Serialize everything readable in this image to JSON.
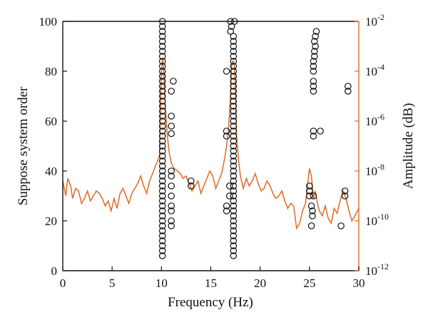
{
  "chart_data": {
    "type": "scatter",
    "xlabel": "Frequency (Hz)",
    "ylabel_left": "Suppose system order",
    "ylabel_right": "Amplitude (dB)",
    "xlim": [
      0,
      30
    ],
    "ylim_left": [
      0,
      100
    ],
    "ylim_right_log10": [
      -12,
      -2
    ],
    "right_scale": "log",
    "grid": false,
    "x_ticks": [
      "0",
      "5",
      "10",
      "15",
      "20",
      "25",
      "30"
    ],
    "y_left_ticks": [
      "0",
      "20",
      "40",
      "60",
      "80",
      "100"
    ],
    "y_right_ticks": [
      {
        "base": "10",
        "exp": "-12"
      },
      {
        "base": "10",
        "exp": "-10"
      },
      {
        "base": "10",
        "exp": "-8"
      },
      {
        "base": "10",
        "exp": "-6"
      },
      {
        "base": "10",
        "exp": "-4"
      },
      {
        "base": "10",
        "exp": "-2"
      }
    ],
    "colors": {
      "axes": "#111111",
      "spectrum": "#e06a22",
      "markers": "#111111"
    },
    "series": [
      {
        "type": "scatter",
        "marker": "open-circle",
        "axis": "left",
        "points": [
          {
            "x": 10.1,
            "y": 6
          },
          {
            "x": 10.1,
            "y": 8
          },
          {
            "x": 10.1,
            "y": 10
          },
          {
            "x": 10.1,
            "y": 12
          },
          {
            "x": 10.1,
            "y": 14
          },
          {
            "x": 10.1,
            "y": 16
          },
          {
            "x": 10.1,
            "y": 18
          },
          {
            "x": 10.1,
            "y": 20
          },
          {
            "x": 10.1,
            "y": 22
          },
          {
            "x": 10.1,
            "y": 24
          },
          {
            "x": 10.1,
            "y": 26
          },
          {
            "x": 10.1,
            "y": 28
          },
          {
            "x": 10.1,
            "y": 30
          },
          {
            "x": 10.1,
            "y": 32
          },
          {
            "x": 10.1,
            "y": 34
          },
          {
            "x": 10.1,
            "y": 36
          },
          {
            "x": 10.1,
            "y": 38
          },
          {
            "x": 10.1,
            "y": 40
          },
          {
            "x": 10.1,
            "y": 42
          },
          {
            "x": 10.1,
            "y": 44
          },
          {
            "x": 10.1,
            "y": 46
          },
          {
            "x": 10.1,
            "y": 48
          },
          {
            "x": 10.1,
            "y": 50
          },
          {
            "x": 10.1,
            "y": 52
          },
          {
            "x": 10.1,
            "y": 54
          },
          {
            "x": 10.1,
            "y": 56
          },
          {
            "x": 10.1,
            "y": 58
          },
          {
            "x": 10.1,
            "y": 60
          },
          {
            "x": 10.1,
            "y": 62
          },
          {
            "x": 10.1,
            "y": 64
          },
          {
            "x": 10.1,
            "y": 66
          },
          {
            "x": 10.1,
            "y": 68
          },
          {
            "x": 10.1,
            "y": 70
          },
          {
            "x": 10.1,
            "y": 72
          },
          {
            "x": 10.1,
            "y": 74
          },
          {
            "x": 10.1,
            "y": 76
          },
          {
            "x": 10.1,
            "y": 78
          },
          {
            "x": 10.1,
            "y": 80
          },
          {
            "x": 10.1,
            "y": 82
          },
          {
            "x": 10.1,
            "y": 84
          },
          {
            "x": 10.1,
            "y": 86
          },
          {
            "x": 10.1,
            "y": 88
          },
          {
            "x": 10.1,
            "y": 90
          },
          {
            "x": 10.1,
            "y": 92
          },
          {
            "x": 10.1,
            "y": 94
          },
          {
            "x": 10.1,
            "y": 96
          },
          {
            "x": 10.1,
            "y": 98
          },
          {
            "x": 10.1,
            "y": 100
          },
          {
            "x": 11.2,
            "y": 76
          },
          {
            "x": 11.0,
            "y": 72
          },
          {
            "x": 11.0,
            "y": 62
          },
          {
            "x": 11.0,
            "y": 58
          },
          {
            "x": 11.0,
            "y": 55
          },
          {
            "x": 11.0,
            "y": 40
          },
          {
            "x": 11.0,
            "y": 38
          },
          {
            "x": 11.0,
            "y": 34
          },
          {
            "x": 11.0,
            "y": 30
          },
          {
            "x": 11.0,
            "y": 26
          },
          {
            "x": 11.0,
            "y": 24
          },
          {
            "x": 11.0,
            "y": 20
          },
          {
            "x": 11.0,
            "y": 18
          },
          {
            "x": 13.0,
            "y": 36
          },
          {
            "x": 13.0,
            "y": 34
          },
          {
            "x": 16.6,
            "y": 80
          },
          {
            "x": 16.6,
            "y": 56
          },
          {
            "x": 16.6,
            "y": 54
          },
          {
            "x": 16.9,
            "y": 34
          },
          {
            "x": 16.9,
            "y": 30
          },
          {
            "x": 16.6,
            "y": 26
          },
          {
            "x": 16.6,
            "y": 24
          },
          {
            "x": 17.0,
            "y": 96
          },
          {
            "x": 17.1,
            "y": 98
          },
          {
            "x": 17.0,
            "y": 100
          },
          {
            "x": 17.4,
            "y": 100
          },
          {
            "x": 17.3,
            "y": 6
          },
          {
            "x": 17.3,
            "y": 8
          },
          {
            "x": 17.3,
            "y": 10
          },
          {
            "x": 17.3,
            "y": 12
          },
          {
            "x": 17.3,
            "y": 14
          },
          {
            "x": 17.3,
            "y": 16
          },
          {
            "x": 17.3,
            "y": 18
          },
          {
            "x": 17.3,
            "y": 20
          },
          {
            "x": 17.3,
            "y": 22
          },
          {
            "x": 17.3,
            "y": 24
          },
          {
            "x": 17.3,
            "y": 26
          },
          {
            "x": 17.3,
            "y": 28
          },
          {
            "x": 17.3,
            "y": 30
          },
          {
            "x": 17.3,
            "y": 32
          },
          {
            "x": 17.3,
            "y": 34
          },
          {
            "x": 17.3,
            "y": 36
          },
          {
            "x": 17.3,
            "y": 38
          },
          {
            "x": 17.3,
            "y": 40
          },
          {
            "x": 17.3,
            "y": 42
          },
          {
            "x": 17.3,
            "y": 44
          },
          {
            "x": 17.3,
            "y": 46
          },
          {
            "x": 17.3,
            "y": 48
          },
          {
            "x": 17.3,
            "y": 50
          },
          {
            "x": 17.3,
            "y": 52
          },
          {
            "x": 17.3,
            "y": 54
          },
          {
            "x": 17.3,
            "y": 56
          },
          {
            "x": 17.3,
            "y": 58
          },
          {
            "x": 17.3,
            "y": 60
          },
          {
            "x": 17.3,
            "y": 62
          },
          {
            "x": 17.3,
            "y": 64
          },
          {
            "x": 17.3,
            "y": 66
          },
          {
            "x": 17.3,
            "y": 68
          },
          {
            "x": 17.3,
            "y": 70
          },
          {
            "x": 17.3,
            "y": 72
          },
          {
            "x": 17.3,
            "y": 74
          },
          {
            "x": 17.3,
            "y": 76
          },
          {
            "x": 17.3,
            "y": 78
          },
          {
            "x": 17.3,
            "y": 80
          },
          {
            "x": 17.3,
            "y": 82
          },
          {
            "x": 17.3,
            "y": 84
          },
          {
            "x": 17.3,
            "y": 86
          },
          {
            "x": 17.3,
            "y": 88
          },
          {
            "x": 17.3,
            "y": 90
          },
          {
            "x": 17.3,
            "y": 92
          },
          {
            "x": 17.3,
            "y": 94
          },
          {
            "x": 25.7,
            "y": 96
          },
          {
            "x": 25.6,
            "y": 94
          },
          {
            "x": 25.5,
            "y": 92
          },
          {
            "x": 25.6,
            "y": 90
          },
          {
            "x": 25.5,
            "y": 88
          },
          {
            "x": 25.5,
            "y": 86
          },
          {
            "x": 25.4,
            "y": 84
          },
          {
            "x": 25.4,
            "y": 82
          },
          {
            "x": 25.4,
            "y": 80
          },
          {
            "x": 25.4,
            "y": 76
          },
          {
            "x": 25.4,
            "y": 74
          },
          {
            "x": 25.4,
            "y": 72
          },
          {
            "x": 25.4,
            "y": 56
          },
          {
            "x": 25.4,
            "y": 54
          },
          {
            "x": 26.1,
            "y": 56
          },
          {
            "x": 25.0,
            "y": 34
          },
          {
            "x": 25.0,
            "y": 32
          },
          {
            "x": 25.0,
            "y": 30
          },
          {
            "x": 25.4,
            "y": 30
          },
          {
            "x": 25.2,
            "y": 26
          },
          {
            "x": 25.3,
            "y": 24
          },
          {
            "x": 25.3,
            "y": 22
          },
          {
            "x": 25.2,
            "y": 18
          },
          {
            "x": 28.2,
            "y": 18
          },
          {
            "x": 28.6,
            "y": 32
          },
          {
            "x": 28.6,
            "y": 30
          },
          {
            "x": 28.9,
            "y": 74
          },
          {
            "x": 28.9,
            "y": 72
          }
        ]
      },
      {
        "type": "line",
        "axis": "right",
        "x": [
          0.0,
          0.3,
          0.5,
          0.8,
          1.0,
          1.3,
          1.6,
          1.9,
          2.2,
          2.5,
          2.8,
          3.1,
          3.4,
          3.7,
          4.0,
          4.3,
          4.6,
          4.9,
          5.2,
          5.5,
          5.8,
          6.1,
          6.4,
          6.7,
          7.0,
          7.3,
          7.6,
          7.9,
          8.2,
          8.5,
          8.8,
          9.1,
          9.4,
          9.6,
          9.8,
          10.0,
          10.1,
          10.2,
          10.4,
          10.6,
          10.8,
          11.0,
          11.3,
          11.6,
          11.9,
          12.2,
          12.5,
          12.8,
          13.1,
          13.4,
          13.7,
          14.0,
          14.3,
          14.6,
          14.9,
          15.2,
          15.5,
          15.8,
          16.1,
          16.4,
          16.6,
          16.8,
          17.0,
          17.1,
          17.2,
          17.3,
          17.4,
          17.5,
          17.6,
          17.8,
          18.0,
          18.3,
          18.6,
          18.9,
          19.2,
          19.5,
          19.8,
          20.1,
          20.4,
          20.7,
          21.0,
          21.3,
          21.6,
          21.9,
          22.2,
          22.5,
          22.8,
          23.1,
          23.4,
          23.7,
          24.0,
          24.3,
          24.6,
          24.8,
          25.0,
          25.2,
          25.4,
          25.6,
          25.8,
          26.0,
          26.3,
          26.6,
          26.9,
          27.2,
          27.5,
          27.8,
          28.1,
          28.4,
          28.7,
          29.0,
          29.3,
          29.6,
          30.0
        ],
        "y_log10": [
          -8.4,
          -9.0,
          -8.3,
          -8.6,
          -9.1,
          -8.7,
          -8.8,
          -9.3,
          -9.1,
          -8.8,
          -9.2,
          -9.0,
          -8.8,
          -8.9,
          -9.1,
          -9.4,
          -9.2,
          -9.6,
          -9.1,
          -9.5,
          -8.9,
          -8.7,
          -9.0,
          -9.3,
          -8.9,
          -8.7,
          -8.5,
          -8.2,
          -8.6,
          -8.9,
          -8.4,
          -8.1,
          -7.8,
          -7.6,
          -7.4,
          -4.0,
          -3.5,
          -3.8,
          -5.5,
          -6.6,
          -7.3,
          -7.7,
          -7.9,
          -8.0,
          -8.1,
          -8.3,
          -8.2,
          -8.5,
          -8.8,
          -8.6,
          -8.4,
          -8.9,
          -8.6,
          -8.3,
          -8.0,
          -8.2,
          -8.7,
          -8.4,
          -8.1,
          -7.5,
          -7.0,
          -6.3,
          -5.0,
          -3.8,
          -3.6,
          -3.6,
          -3.8,
          -4.8,
          -6.5,
          -7.5,
          -8.2,
          -8.7,
          -8.3,
          -8.6,
          -8.4,
          -8.1,
          -8.5,
          -8.8,
          -8.7,
          -8.4,
          -8.6,
          -8.9,
          -9.1,
          -9.0,
          -8.8,
          -9.2,
          -9.5,
          -9.3,
          -9.4,
          -10.3,
          -10.1,
          -9.6,
          -9.3,
          -8.6,
          -7.9,
          -8.2,
          -9.1,
          -8.8,
          -9.3,
          -9.6,
          -9.8,
          -9.4,
          -9.9,
          -10.1,
          -9.5,
          -9.7,
          -9.2,
          -8.8,
          -9.1,
          -9.6,
          -10.0,
          -9.8,
          -9.5
        ]
      }
    ]
  }
}
